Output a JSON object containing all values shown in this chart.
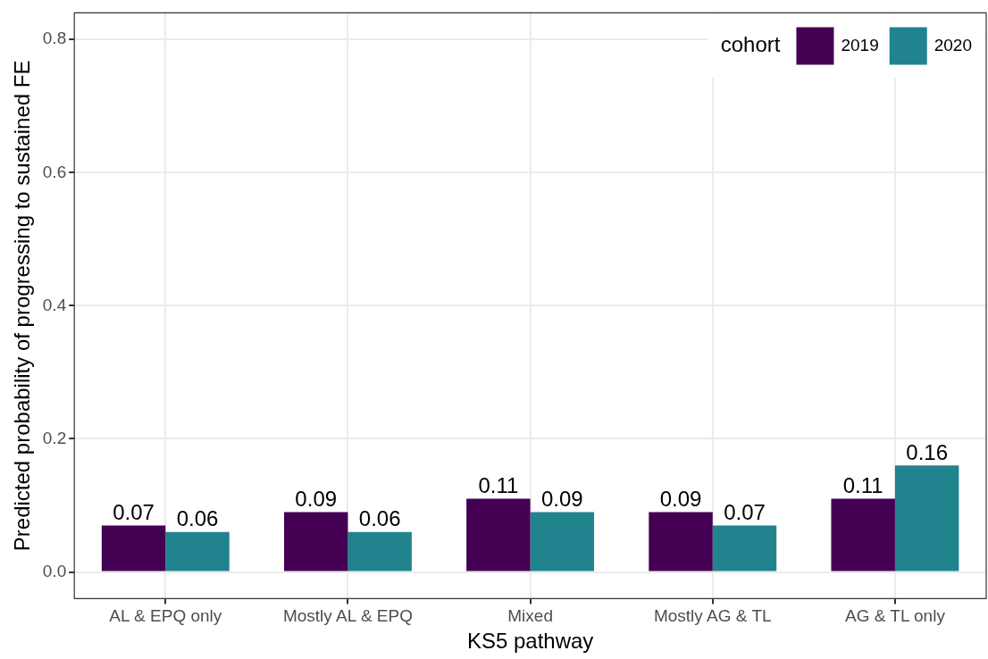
{
  "chart_data": {
    "type": "bar",
    "xlabel": "KS5 pathway",
    "ylabel": "Predicted probability of progressing to sustained FE",
    "legend_title": "cohort",
    "categories": [
      "AL & EPQ only",
      "Mostly AL & EPQ",
      "Mixed",
      "Mostly AG & TL",
      "AG & TL only"
    ],
    "series": [
      {
        "name": "2019",
        "color": "#440154",
        "values": [
          0.07,
          0.09,
          0.11,
          0.09,
          0.11
        ]
      },
      {
        "name": "2020",
        "color": "#21838e",
        "values": [
          0.06,
          0.06,
          0.09,
          0.07,
          0.16
        ]
      }
    ],
    "ylim": [
      -0.04,
      0.84
    ],
    "yticks": [
      {
        "value": 0,
        "label": "0.0"
      },
      0.2,
      0.4,
      0.6,
      0.8
    ],
    "grid": true,
    "legend": "top right",
    "data_labels": true
  }
}
